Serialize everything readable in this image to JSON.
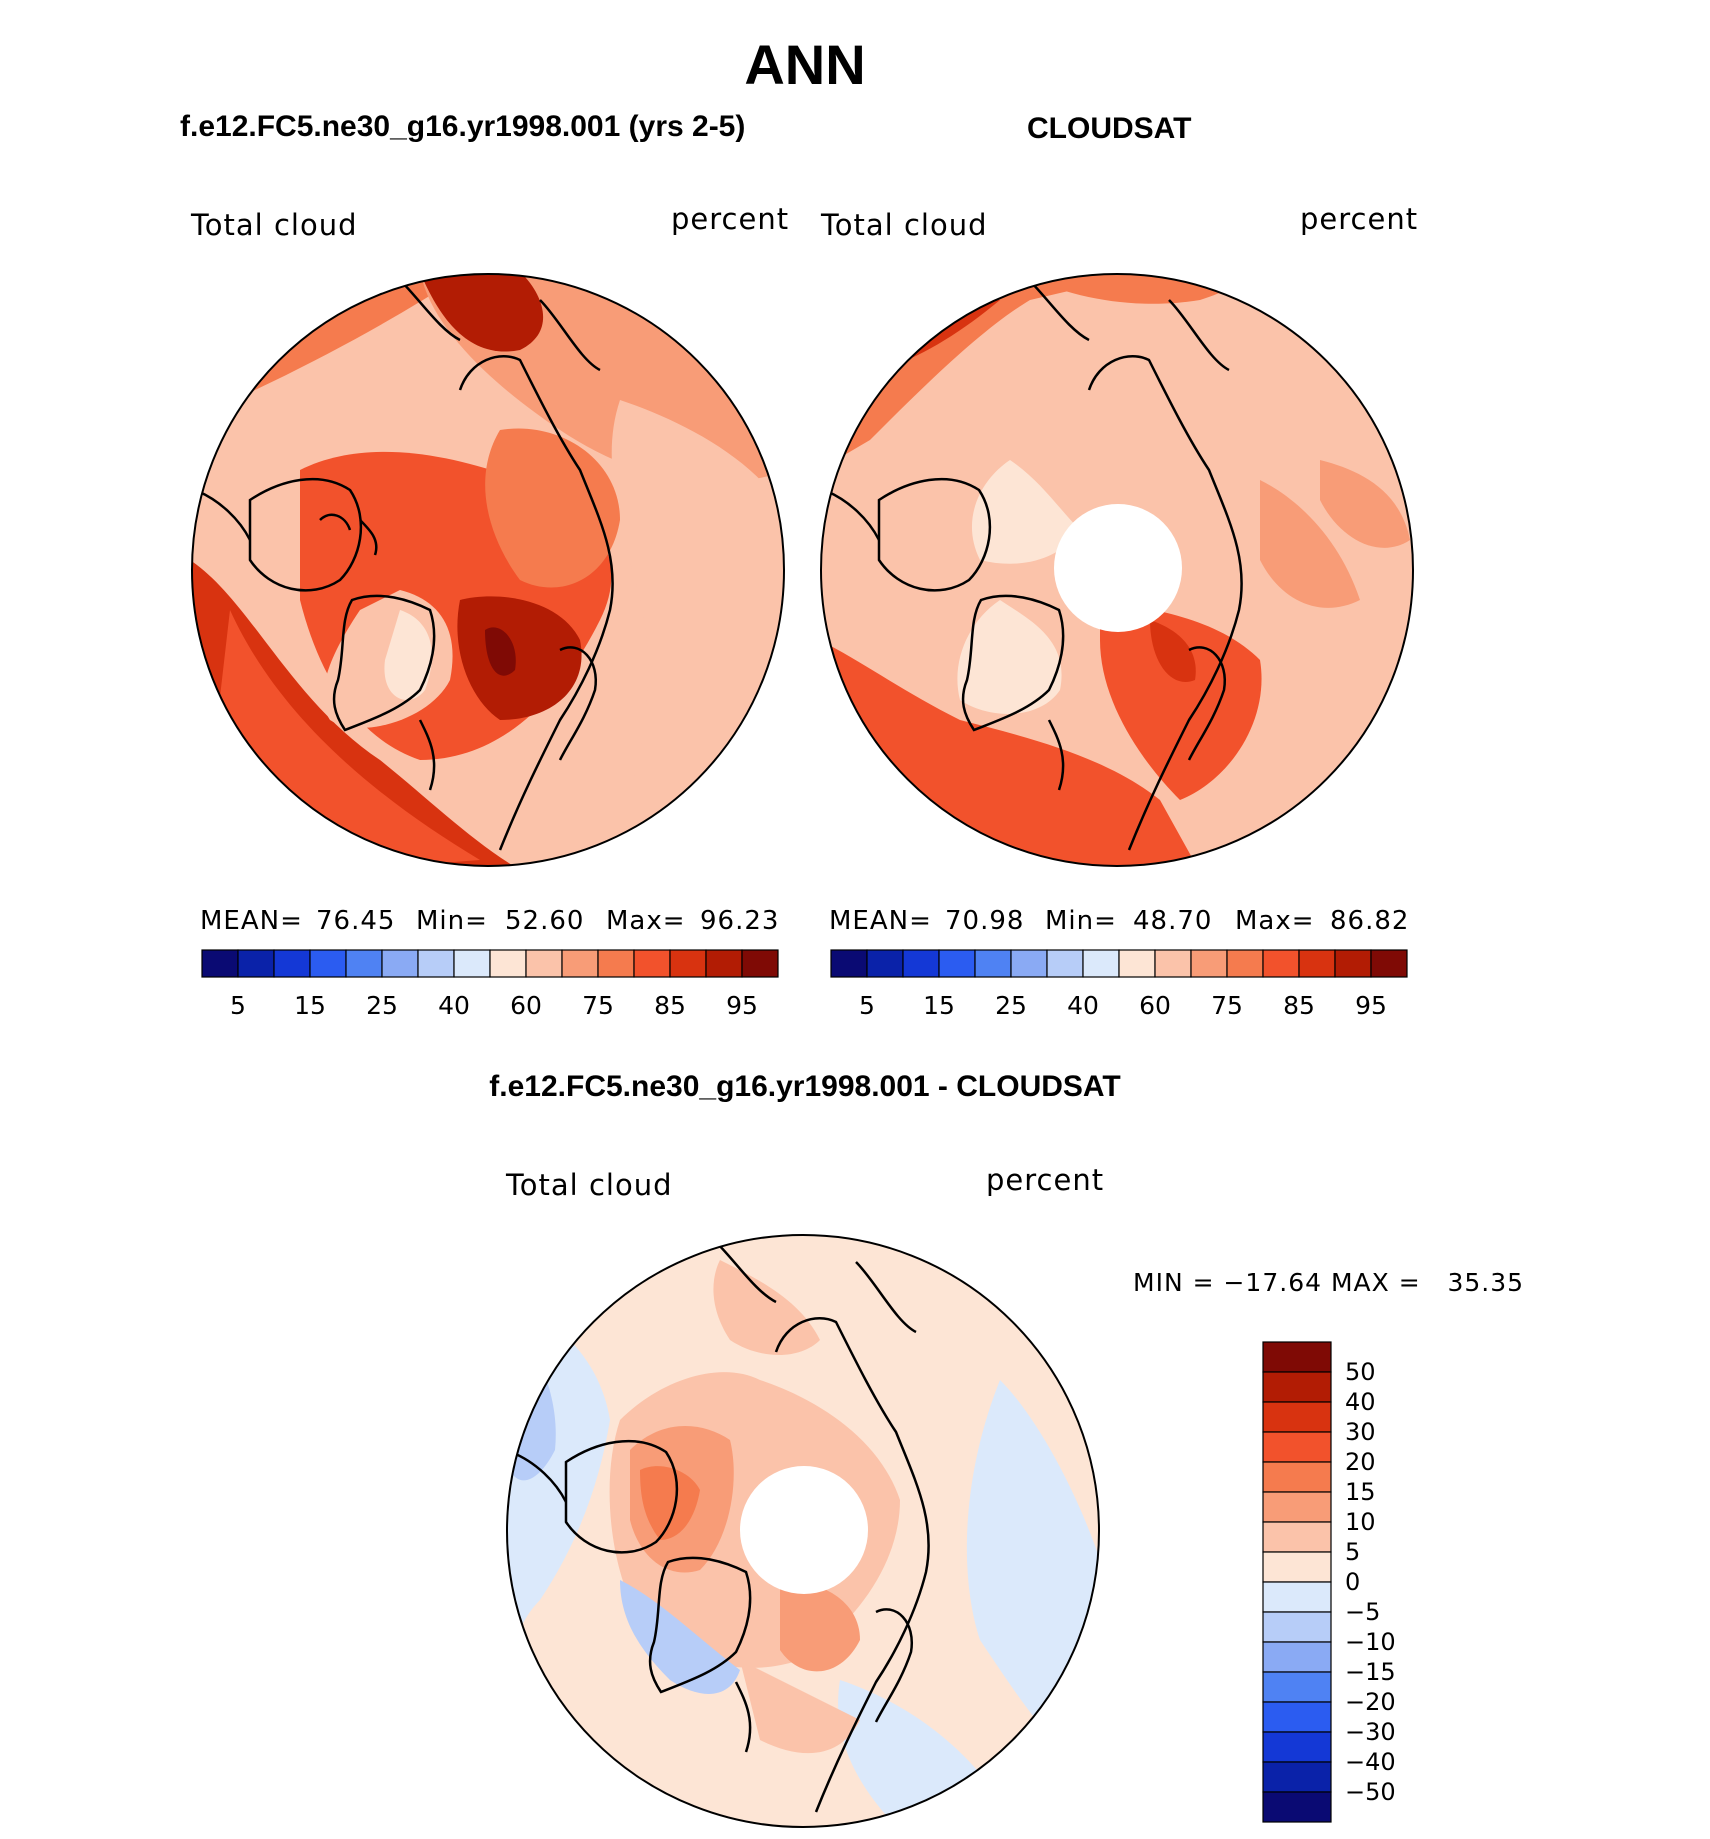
{
  "page_title": "ANN",
  "colors": {
    "abs_palette": [
      "#0a0a73",
      "#0a22a9",
      "#1438d6",
      "#2b5cf1",
      "#4f82f3",
      "#8aaaf4",
      "#b7cdf8",
      "#dbe9fb",
      "#fde5d5",
      "#fbc3aa",
      "#f89c77",
      "#f57b4e",
      "#f2522c",
      "#d83310",
      "#b21c04",
      "#7f0a05"
    ],
    "diff_palette": [
      "#7f0a05",
      "#b21c04",
      "#d83310",
      "#f2522c",
      "#f57b4e",
      "#f89c77",
      "#fbc3aa",
      "#fde5d5",
      "#dbe9fb",
      "#b7cdf8",
      "#8aaaf4",
      "#4f82f3",
      "#2b5cf1",
      "#1438d6",
      "#0a22a9",
      "#0a0a73"
    ]
  },
  "panels": [
    {
      "header": "f.e12.FC5.ne30_g16.yr1998.001 (yrs 2-5)",
      "variable": "Total cloud",
      "units": "percent",
      "stats": {
        "mean_label": "MEAN=",
        "mean": "76.45",
        "min_label": "Min=",
        "min": "52.60",
        "max_label": "Max=",
        "max": "96.23"
      },
      "colorbar_ticks": [
        "5",
        "15",
        "25",
        "40",
        "60",
        "75",
        "85",
        "95"
      ]
    },
    {
      "header": "CLOUDSAT",
      "variable": "Total cloud",
      "units": "percent",
      "stats": {
        "mean_label": "MEAN=",
        "mean": "70.98",
        "min_label": "Min=",
        "min": "48.70",
        "max_label": "Max=",
        "max": "86.82"
      },
      "colorbar_ticks": [
        "5",
        "15",
        "25",
        "40",
        "60",
        "75",
        "85",
        "95"
      ]
    }
  ],
  "diff_panel": {
    "header": "f.e12.FC5.ne30_g16.yr1998.001 - CLOUDSAT",
    "variable": "Total cloud",
    "units": "percent",
    "minmax": "MIN = −17.64 MAX =   35.35",
    "colorbar_ticks": [
      "50",
      "40",
      "30",
      "20",
      "15",
      "10",
      "5",
      "0",
      "−5",
      "−10",
      "−15",
      "−20",
      "−30",
      "−40",
      "−50"
    ]
  }
}
